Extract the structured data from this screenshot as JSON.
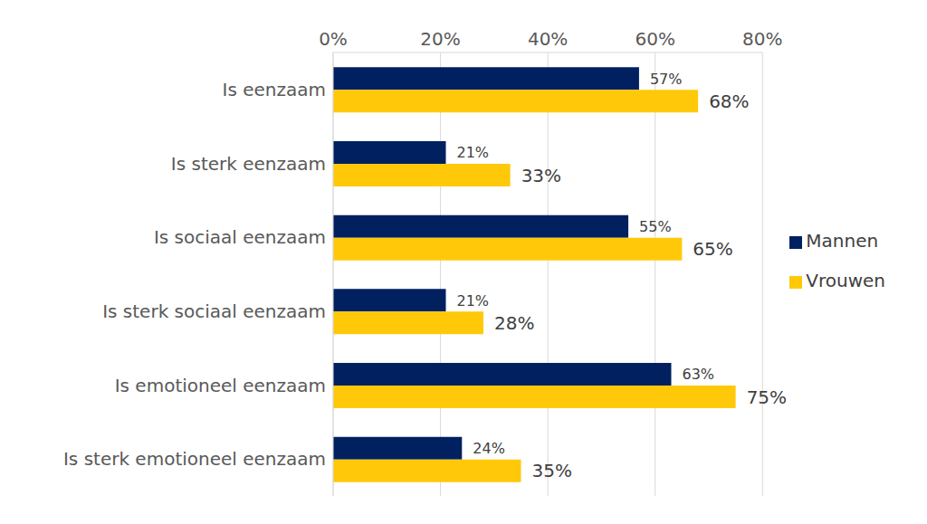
{
  "chart_data": {
    "type": "bar",
    "orientation": "horizontal",
    "categories": [
      "Is eenzaam",
      "Is sterk eenzaam",
      "Is sociaal eenzaam",
      "Is sterk sociaal eenzaam",
      "Is emotioneel eenzaam",
      "Is sterk emotioneel eenzaam"
    ],
    "series": [
      {
        "name": "Mannen",
        "color": "#002060",
        "values": [
          57,
          21,
          55,
          21,
          63,
          24
        ],
        "value_labels": [
          "57%",
          "21%",
          "55%",
          "21%",
          "63%",
          "24%"
        ]
      },
      {
        "name": "Vrouwen",
        "color": "#FFC90A",
        "values": [
          68,
          33,
          65,
          28,
          75,
          35
        ],
        "value_labels": [
          "68%",
          "33%",
          "65%",
          "28%",
          "75%",
          "35%"
        ]
      }
    ],
    "xlim": [
      0,
      80
    ],
    "xticks": [
      {
        "value": 0,
        "label": "0%"
      },
      {
        "value": 20,
        "label": "20%"
      },
      {
        "value": 40,
        "label": "40%"
      },
      {
        "value": 60,
        "label": "60%"
      },
      {
        "value": 80,
        "label": "80%"
      }
    ],
    "grid": true,
    "legend": "right",
    "data_labels": true
  }
}
